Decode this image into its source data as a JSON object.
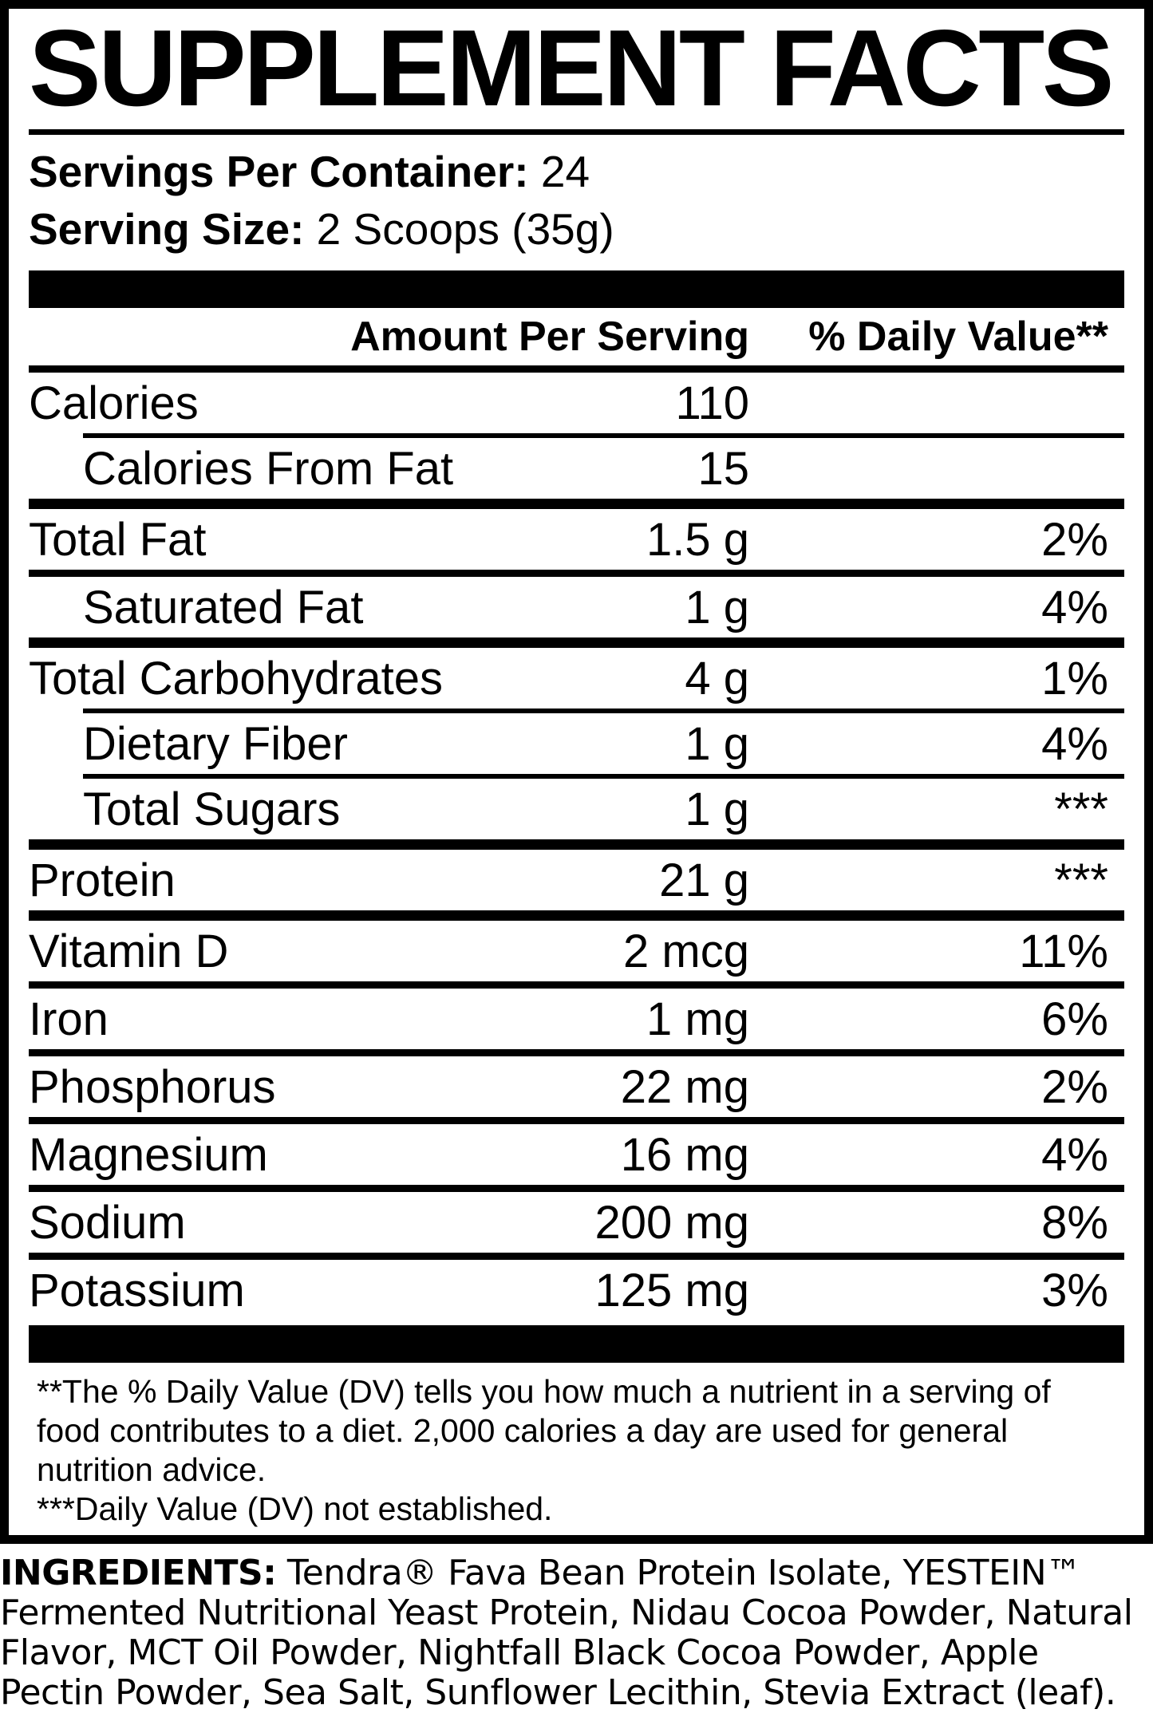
{
  "colors": {
    "ink": "#000000",
    "paper": "#ffffff"
  },
  "panel": {
    "title": "SUPPLEMENT FACTS",
    "servings_per_container_label": "Servings Per Container:",
    "servings_per_container_value": "24",
    "serving_size_label": "Serving Size:",
    "serving_size_value": "2 Scoops (35g)",
    "column_headers": {
      "amount": "Amount Per Serving",
      "daily_value": "% Daily Value**"
    },
    "rows": [
      {
        "name": "Calories",
        "amount": "110",
        "dv": "",
        "indent": false,
        "sep_after": "thin-ind"
      },
      {
        "name": "Calories From Fat",
        "amount": "15",
        "dv": "",
        "indent": true,
        "sep_after": "thick"
      },
      {
        "name": "Total Fat",
        "amount": "1.5 g",
        "dv": "2%",
        "indent": false,
        "sep_after": "medium"
      },
      {
        "name": "Saturated Fat",
        "amount": "1 g",
        "dv": "4%",
        "indent": true,
        "sep_after": "thick"
      },
      {
        "name": "Total Carbohydrates",
        "amount": "4 g",
        "dv": "1%",
        "indent": false,
        "sep_after": "thin-ind"
      },
      {
        "name": "Dietary Fiber",
        "amount": "1 g",
        "dv": "4%",
        "indent": true,
        "sep_after": "thin-ind"
      },
      {
        "name": "Total Sugars",
        "amount": "1 g",
        "dv": "***",
        "indent": true,
        "sep_after": "thick"
      },
      {
        "name": "Protein",
        "amount": "21 g",
        "dv": "***",
        "indent": false,
        "sep_after": "thick"
      },
      {
        "name": "Vitamin D",
        "amount": "2 mcg",
        "dv": "11%",
        "indent": false,
        "sep_after": "medium"
      },
      {
        "name": "Iron",
        "amount": "1 mg",
        "dv": "6%",
        "indent": false,
        "sep_after": "medium"
      },
      {
        "name": "Phosphorus",
        "amount": "22 mg",
        "dv": "2%",
        "indent": false,
        "sep_after": "medium"
      },
      {
        "name": "Magnesium",
        "amount": "16 mg",
        "dv": "4%",
        "indent": false,
        "sep_after": "medium"
      },
      {
        "name": "Sodium",
        "amount": "200 mg",
        "dv": "8%",
        "indent": false,
        "sep_after": "medium"
      },
      {
        "name": "Potassium",
        "amount": "125 mg",
        "dv": "3%",
        "indent": false,
        "sep_after": "none"
      }
    ],
    "footnotes": [
      "**The % Daily Value (DV) tells you how much a nutrient in a serving of food contributes to a diet. 2,000 calories a day are used for general nutrition advice.",
      "***Daily Value (DV) not established."
    ]
  },
  "ingredients": {
    "label": "INGREDIENTS:",
    "text": "Tendra® Fava Bean Protein Isolate, YESTEIN™ Fermented Nutritional Yeast Protein, Nidau Cocoa Powder, Natural Flavor, MCT Oil Powder, Nightfall Black Cocoa Powder, Apple Pectin Powder, Sea Salt, Sunflower Lecithin, Stevia Extract (leaf)."
  }
}
